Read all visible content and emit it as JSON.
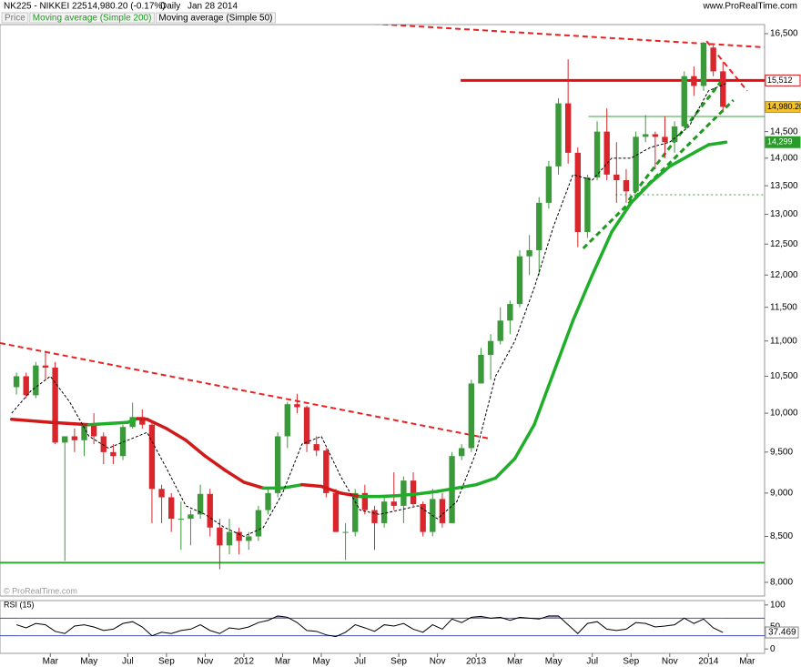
{
  "header": {
    "symbol": "NK225 - NIKKEI 225",
    "quote": "14,980.20 (-0.17%)",
    "period": "Daily",
    "date": "Jan 28 2014",
    "site": "www.ProRealTime.com"
  },
  "chart_data": [
    {
      "type": "candlestick",
      "name": "Price",
      "watermark": "© ProRealTime.com",
      "log": true,
      "ylim": [
        7857,
        16699
      ],
      "yticks": [
        {
          "value": 8000,
          "label": "8,000"
        },
        {
          "value": 8500,
          "label": "8,500"
        },
        {
          "value": 9000,
          "label": "9,000"
        },
        {
          "value": 9500,
          "label": "9,500"
        },
        {
          "value": 10000,
          "label": "10,000"
        },
        {
          "value": 10500,
          "label": "10,500"
        },
        {
          "value": 11000,
          "label": "11,000"
        },
        {
          "value": 11500,
          "label": "11,500"
        },
        {
          "value": 12000,
          "label": "12,000"
        },
        {
          "value": 12500,
          "label": "12,500"
        },
        {
          "value": 13000,
          "label": "13,000"
        },
        {
          "value": 13500,
          "label": "13,500"
        },
        {
          "value": 14000,
          "label": "14,000"
        },
        {
          "value": 14500,
          "label": "14,500"
        },
        {
          "value": 16500,
          "label": "16,500"
        }
      ],
      "xlim": [
        -0.6,
        38.9
      ],
      "xticks": [
        {
          "value": 2,
          "label": "Mar"
        },
        {
          "value": 4,
          "label": "May"
        },
        {
          "value": 6,
          "label": "Jul"
        },
        {
          "value": 8,
          "label": "Sep"
        },
        {
          "value": 10,
          "label": "Nov"
        },
        {
          "value": 12,
          "label": "2012"
        },
        {
          "value": 14,
          "label": "Mar"
        },
        {
          "value": 16,
          "label": "May"
        },
        {
          "value": 18,
          "label": "Jul"
        },
        {
          "value": 20,
          "label": "Sep"
        },
        {
          "value": 22,
          "label": "Nov"
        },
        {
          "value": 24,
          "label": "2013"
        },
        {
          "value": 26,
          "label": "Mar"
        },
        {
          "value": 28,
          "label": "May"
        },
        {
          "value": 30,
          "label": "Jul"
        },
        {
          "value": 32,
          "label": "Sep"
        },
        {
          "value": 34,
          "label": "Nov"
        },
        {
          "value": 36,
          "label": "2014"
        },
        {
          "value": 38,
          "label": "Mar"
        }
      ],
      "x": [
        0.25,
        0.75,
        1.25,
        1.75,
        2.25,
        2.75,
        3.25,
        3.75,
        4.25,
        4.75,
        5.25,
        5.75,
        6.25,
        6.75,
        7.25,
        7.75,
        8.25,
        8.75,
        9.25,
        9.75,
        10.25,
        10.75,
        11.25,
        11.75,
        12.25,
        12.75,
        13.25,
        13.75,
        14.25,
        14.75,
        15.25,
        15.75,
        16.25,
        16.75,
        17.25,
        17.75,
        18.25,
        18.75,
        19.25,
        19.75,
        20.25,
        20.75,
        21.25,
        21.75,
        22.25,
        22.75,
        23.25,
        23.75,
        24.25,
        24.75,
        25.25,
        25.75,
        26.25,
        26.75,
        27.25,
        27.75,
        28.25,
        28.75,
        29.25,
        29.75,
        30.25,
        30.75,
        31.25,
        31.75,
        32.25,
        32.75,
        33.25,
        33.75,
        34.25,
        34.75,
        35.25,
        35.75,
        36.25,
        36.75
      ],
      "open": [
        10350,
        10500,
        10240,
        10650,
        10620,
        9620,
        9700,
        9650,
        9850,
        9700,
        9500,
        9450,
        9820,
        9950,
        9850,
        9050,
        8950,
        8700,
        8700,
        8750,
        8990,
        8600,
        8400,
        8550,
        8450,
        8500,
        8800,
        9000,
        9700,
        10120,
        10080,
        9600,
        9520,
        9000,
        8550,
        8550,
        9000,
        8800,
        8650,
        8900,
        8850,
        9150,
        8870,
        8550,
        8930,
        8650,
        9450,
        9550,
        10400,
        10800,
        11000,
        11300,
        11550,
        12300,
        12400,
        13200,
        13850,
        15050,
        14100,
        12700,
        13650,
        14500,
        13700,
        13600,
        13400,
        14400,
        14450,
        14400,
        14300,
        14600,
        15600,
        15400,
        16200,
        15700
      ],
      "high": [
        10550,
        10550,
        10700,
        10860,
        10700,
        9700,
        9800,
        9850,
        10000,
        9750,
        9600,
        9850,
        10140,
        10050,
        9900,
        9100,
        9000,
        8900,
        8800,
        9100,
        9050,
        8700,
        8700,
        8600,
        8550,
        8850,
        9050,
        9750,
        10150,
        10260,
        10100,
        9700,
        9550,
        9050,
        8650,
        9050,
        9100,
        8850,
        8950,
        9250,
        9200,
        9250,
        8900,
        9050,
        9000,
        9500,
        9600,
        10450,
        10900,
        11100,
        11500,
        11600,
        12400,
        12650,
        13300,
        13950,
        15150,
        15950,
        14200,
        13700,
        14700,
        14950,
        14300,
        13800,
        14500,
        14820,
        14500,
        14800,
        14700,
        15700,
        15800,
        16320,
        16250,
        15900
      ],
      "low": [
        10250,
        10200,
        10200,
        10450,
        9600,
        8230,
        9500,
        9450,
        9600,
        9350,
        9350,
        9400,
        9800,
        9800,
        8650,
        8650,
        8550,
        8350,
        8400,
        8700,
        8500,
        8140,
        8300,
        8300,
        8350,
        8450,
        8750,
        8950,
        9550,
        10000,
        9500,
        9450,
        8950,
        8550,
        8240,
        8500,
        8750,
        8350,
        8600,
        8800,
        8650,
        8850,
        8500,
        8500,
        8600,
        8650,
        9400,
        9500,
        10400,
        10450,
        10950,
        11100,
        11500,
        12000,
        12000,
        13100,
        13700,
        13900,
        12450,
        12600,
        13600,
        13600,
        13200,
        13200,
        13400,
        14300,
        13800,
        14000,
        14100,
        14600,
        15200,
        15300,
        15600,
        14900
      ],
      "close": [
        10500,
        10240,
        10650,
        10620,
        9620,
        9700,
        9650,
        9850,
        9700,
        9500,
        9450,
        9820,
        9950,
        9850,
        9050,
        8950,
        8700,
        8700,
        8750,
        8990,
        8600,
        8400,
        8550,
        8450,
        8500,
        8800,
        9000,
        9700,
        10120,
        10080,
        9600,
        9520,
        9000,
        8550,
        8550,
        9000,
        8800,
        8650,
        8900,
        8850,
        9150,
        8870,
        8550,
        8930,
        8650,
        9450,
        9550,
        10400,
        10800,
        11000,
        11300,
        11550,
        12300,
        12400,
        13200,
        13850,
        15050,
        14100,
        12700,
        13650,
        14500,
        13700,
        13600,
        13400,
        14400,
        14450,
        14400,
        14300,
        14600,
        15600,
        15400,
        16300,
        15700,
        14980.2
      ],
      "up_color": "#3a9a3a",
      "down_color": "#d9262c",
      "series": [
        {
          "name": "Moving average (Simple 200)",
          "up_color": "#1fae2a",
          "down_color": "#d01919",
          "legend_color": "#1a9a1a",
          "style": "thick",
          "x": [
            0,
            2,
            4,
            6,
            6.5,
            7,
            8,
            9,
            10,
            11,
            12,
            13,
            14,
            15,
            16,
            17,
            18,
            19,
            20,
            21,
            22,
            23,
            24,
            25,
            26,
            27,
            28,
            29,
            30,
            31,
            32,
            33,
            34,
            35,
            36,
            36.9
          ],
          "values": [
            9920,
            9880,
            9850,
            9880,
            9930,
            9920,
            9800,
            9650,
            9450,
            9280,
            9130,
            9060,
            9060,
            9100,
            9080,
            9000,
            8960,
            8960,
            8970,
            8990,
            9020,
            9060,
            9100,
            9180,
            9420,
            9850,
            10550,
            11300,
            12000,
            12700,
            13200,
            13550,
            13850,
            14050,
            14250,
            14299
          ]
        },
        {
          "name": "Moving average (Simple 50)",
          "color": "#000000",
          "legend_color": "#000000",
          "style": "dashed",
          "x": [
            0,
            1,
            2,
            3,
            4,
            5,
            6,
            7,
            8,
            9,
            10,
            11,
            12,
            13,
            14,
            15,
            16,
            17,
            18,
            19,
            20,
            21,
            22,
            23,
            24,
            25,
            26,
            27,
            28,
            29,
            30,
            31,
            32,
            33,
            34,
            35,
            36,
            36.9
          ],
          "values": [
            10000,
            10300,
            10500,
            10150,
            9700,
            9550,
            9650,
            9750,
            9300,
            8850,
            8750,
            8600,
            8500,
            8600,
            9000,
            9600,
            9700,
            9200,
            8800,
            8750,
            8800,
            8850,
            8700,
            8900,
            9500,
            10500,
            11000,
            11800,
            12800,
            13700,
            13600,
            14000,
            14000,
            14200,
            14300,
            14600,
            15300,
            15450
          ]
        }
      ],
      "lines": [
        {
          "x": [
            -0.6,
            24.7
          ],
          "values": [
            10970,
            9670
          ],
          "color": "#e82222",
          "style": "dashed",
          "width": 2
        },
        {
          "x": [
            11.65,
            38.9
          ],
          "values": [
            16900,
            16206
          ],
          "color": "#e82222",
          "style": "dashed",
          "width": 2
        },
        {
          "x": [
            35.9,
            38.0
          ],
          "values": [
            16340,
            15300
          ],
          "color": "#e82222",
          "style": "dashed",
          "width": 2
        },
        {
          "x": [
            23.2,
            38.9
          ],
          "values": [
            15512,
            15512
          ],
          "color": "#e01010",
          "style": "solid",
          "width": 3
        },
        {
          "x": [
            -0.6,
            38.9
          ],
          "values": [
            8210,
            8210
          ],
          "color": "#2aaa2a",
          "style": "solid",
          "width": 2
        },
        {
          "x": [
            29.53,
            37.29
          ],
          "values": [
            12430,
            15115
          ],
          "color": "#1f9a1f",
          "style": "dashed",
          "width": 3
        },
        {
          "x": [
            31.88,
            36.82
          ],
          "values": [
            13246,
            15576
          ],
          "color": "#1f9a1f",
          "style": "dashed",
          "width": 3
        },
        {
          "x": [
            29.8,
            38.9
          ],
          "values": [
            14793,
            14793
          ],
          "color": "#3aa03a",
          "style": "solid",
          "width": 1
        },
        {
          "x": [
            31.2,
            38.9
          ],
          "values": [
            13342,
            13342
          ],
          "color": "#3aa03a",
          "style": "dotted",
          "width": 1
        }
      ],
      "price_labels": [
        {
          "value": 15512,
          "label": "15,512",
          "bg": "#ffffff",
          "fg": "#000000",
          "border": "#d01919"
        },
        {
          "value": 14980.2,
          "label": "14,980.20",
          "bg": "#f2c12e",
          "fg": "#000000",
          "border": "#c79400"
        },
        {
          "value": 14299,
          "label": "14,299",
          "bg": "#2a9a2a",
          "fg": "#ffffff",
          "border": "#2a9a2a"
        }
      ]
    },
    {
      "type": "line",
      "title": "RSI (15)",
      "ylim": [
        -10,
        110
      ],
      "yticks": [
        0,
        50,
        100
      ],
      "levels": [
        30,
        70
      ],
      "color": "#000000",
      "level_color": "#3b4cc0",
      "fill_color": "#a897c0",
      "values": [
        55,
        48,
        58,
        55,
        40,
        35,
        52,
        55,
        50,
        42,
        45,
        58,
        62,
        50,
        30,
        38,
        35,
        42,
        45,
        55,
        42,
        35,
        48,
        45,
        50,
        60,
        65,
        75,
        72,
        60,
        42,
        40,
        32,
        28,
        38,
        55,
        48,
        40,
        55,
        52,
        58,
        45,
        38,
        55,
        45,
        68,
        60,
        72,
        74,
        70,
        72,
        65,
        72,
        70,
        68,
        75,
        75,
        55,
        35,
        58,
        62,
        45,
        42,
        45,
        60,
        58,
        50,
        52,
        55,
        70,
        58,
        68,
        48,
        37.469
      ]
    }
  ]
}
